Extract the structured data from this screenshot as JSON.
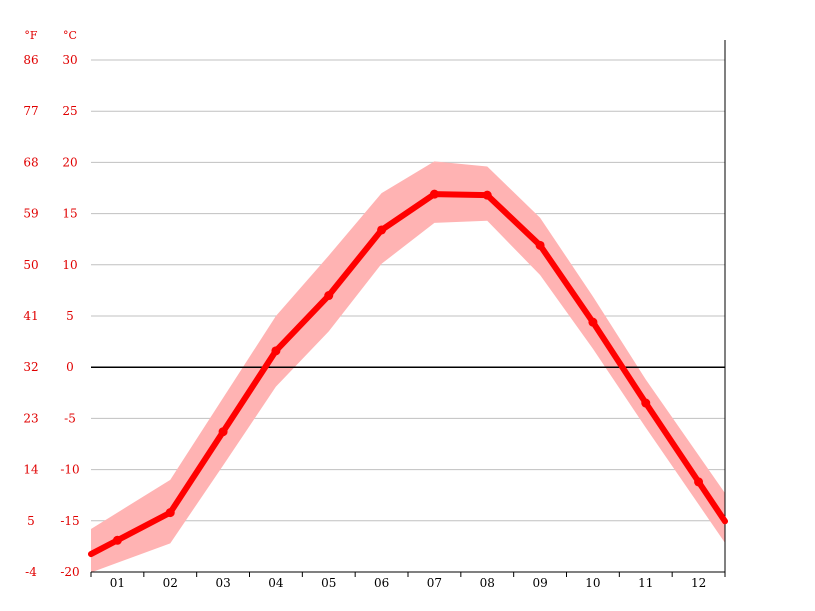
{
  "chart_data": {
    "type": "line",
    "y_units": {
      "left": "°F",
      "right": "°C"
    },
    "categories": [
      "01",
      "02",
      "03",
      "04",
      "05",
      "06",
      "07",
      "08",
      "09",
      "10",
      "11",
      "12"
    ],
    "ylim": [
      -20,
      30
    ],
    "yticks_c": [
      30,
      25,
      20,
      15,
      10,
      5,
      0,
      -5,
      -10,
      -15,
      -20
    ],
    "yticks_f": [
      86,
      77,
      68,
      59,
      50,
      41,
      32,
      23,
      14,
      5,
      -4
    ],
    "grid": true,
    "zero_line": true,
    "series": [
      {
        "values": [
          -16.9,
          -14.2,
          -6.3,
          1.6,
          7.0,
          13.4,
          16.9,
          16.8,
          11.9,
          4.4,
          -3.5,
          -11.2
        ]
      }
    ],
    "band": {
      "upper": [
        -14.2,
        -11.0,
        -3.0,
        5.0,
        10.9,
        17.0,
        20.1,
        19.6,
        14.6,
        6.9,
        -1.2,
        -8.6
      ],
      "lower": [
        -19.1,
        -17.2,
        -9.6,
        -1.9,
        3.5,
        10.1,
        14.1,
        14.3,
        9.0,
        1.8,
        -5.9,
        -13.4
      ]
    },
    "colors": {
      "line": "#ff0000",
      "band": "#ffb3b3",
      "grid": "#c0c0c0",
      "zero": "#000000",
      "labels": "#e00000"
    }
  }
}
